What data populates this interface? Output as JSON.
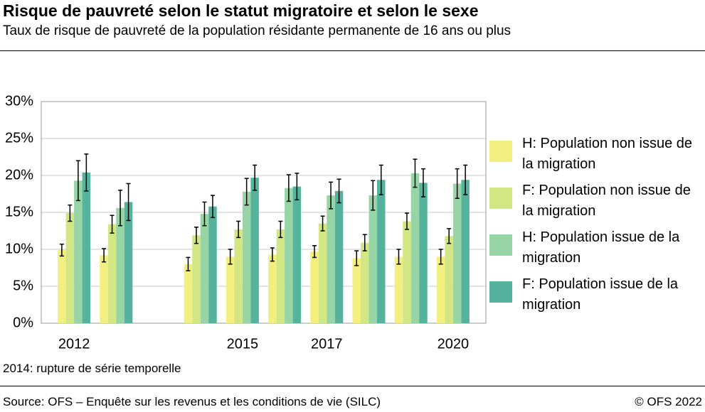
{
  "chart_data": {
    "type": "bar",
    "title": "Risque de pauvreté selon le statut migratoire et selon le sexe",
    "subtitle": "Taux de risque de pauvreté de la population résidante permanente de 16 ans ou plus",
    "note": "2014: rupture de série temporelle",
    "source": "Source: OFS – Enquête sur les revenus et les conditions de vie (SILC)",
    "copyright": "© OFS 2022",
    "categories": [
      "2012",
      null,
      null,
      null,
      "2015",
      null,
      "2017",
      null,
      null,
      "2020"
    ],
    "series": [
      {
        "name": "H: Population non issue de la migration",
        "color": "#f2ef80",
        "values": [
          9.9,
          9.2,
          null,
          8.0,
          9.0,
          9.3,
          9.7,
          8.8,
          9.0,
          9.0
        ],
        "errors": [
          0.8,
          0.9,
          null,
          0.9,
          1.0,
          0.9,
          0.8,
          1.0,
          1.0,
          1.0
        ]
      },
      {
        "name": "F: Population non issue de la migration",
        "color": "#d3e684",
        "values": [
          14.9,
          13.4,
          null,
          11.9,
          12.7,
          12.7,
          13.5,
          10.9,
          13.8,
          11.8
        ],
        "errors": [
          1.1,
          1.2,
          null,
          1.1,
          1.1,
          1.1,
          1.0,
          1.1,
          1.1,
          1.0
        ]
      },
      {
        "name": "H: Population issue de la migration",
        "color": "#97d5a6",
        "values": [
          19.3,
          15.6,
          null,
          14.8,
          17.8,
          18.3,
          17.3,
          17.3,
          20.3,
          18.9
        ],
        "errors": [
          2.7,
          2.4,
          null,
          1.6,
          1.8,
          1.8,
          1.8,
          2.0,
          1.9,
          2.0
        ]
      },
      {
        "name": "F: Population issue de la migration",
        "color": "#55b39d",
        "values": [
          20.4,
          16.4,
          null,
          15.8,
          19.7,
          18.5,
          17.9,
          19.4,
          19.0,
          19.4
        ],
        "errors": [
          2.5,
          2.5,
          null,
          1.5,
          1.7,
          1.8,
          1.6,
          2.0,
          1.9,
          2.0
        ]
      }
    ],
    "ylim": [
      0,
      30
    ],
    "yticks": [
      {
        "value": 0,
        "label": "0%"
      },
      {
        "value": 5,
        "label": "5%"
      },
      {
        "value": 10,
        "label": "10%"
      },
      {
        "value": 15,
        "label": "15%"
      },
      {
        "value": 20,
        "label": "20%"
      },
      {
        "value": 25,
        "label": "25%"
      },
      {
        "value": 30,
        "label": "30%"
      }
    ],
    "grid": true,
    "legend": "right"
  }
}
